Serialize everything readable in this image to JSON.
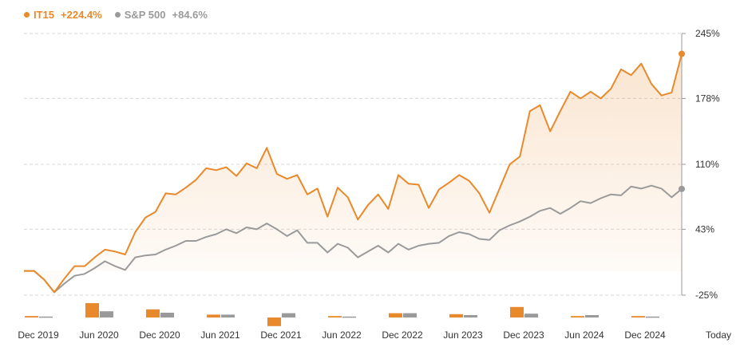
{
  "colors": {
    "it15": "#e8892b",
    "sp500": "#9a9a9a",
    "grid": "#d8d8d8",
    "text": "#333333"
  },
  "legend": {
    "it15": {
      "name": "IT15",
      "value": "+224.4%"
    },
    "sp500": {
      "name": "S&P 500",
      "value": "+84.6%"
    }
  },
  "chart_data": {
    "type": "line",
    "x_labels": [
      "Dec 2019",
      "Jun 2020",
      "Dec 2020",
      "Jun 2021",
      "Dec 2021",
      "Jun 2022",
      "Dec 2022",
      "Jun 2023",
      "Dec 2023",
      "Jun 2024",
      "Dec 2024",
      "Today"
    ],
    "y_ticks": [
      "245%",
      "178%",
      "110%",
      "43%",
      "-25%"
    ],
    "ylim": [
      -25,
      245
    ],
    "grid": "horizontal dashed",
    "legend_position": "top-left",
    "series": [
      {
        "name": "IT15",
        "color": "#e8892b",
        "values": [
          0,
          0,
          -9,
          -22,
          -8,
          5,
          5,
          14,
          22,
          20,
          17,
          40,
          55,
          61,
          80,
          79,
          86,
          94,
          106,
          104,
          107,
          98,
          111,
          106,
          127,
          100,
          95,
          99,
          79,
          85,
          56,
          86,
          76,
          53,
          68,
          79,
          64,
          99,
          90,
          89,
          65,
          84,
          91,
          99,
          93,
          80,
          60,
          85,
          110,
          118,
          165,
          171,
          144,
          165,
          185,
          178,
          185,
          178,
          188,
          208,
          202,
          214,
          193,
          181,
          184,
          224
        ]
      },
      {
        "name": "S&P 500",
        "color": "#9a9a9a",
        "values": [
          0,
          0,
          -9,
          -22,
          -13,
          -5,
          -3,
          3,
          10,
          5,
          1,
          14,
          16,
          17,
          22,
          26,
          31,
          31,
          35,
          38,
          43,
          39,
          45,
          43,
          49,
          43,
          36,
          42,
          29,
          29,
          19,
          28,
          24,
          14,
          20,
          26,
          19,
          28,
          22,
          26,
          28,
          29,
          36,
          40,
          38,
          33,
          32,
          42,
          47,
          51,
          56,
          62,
          65,
          59,
          65,
          72,
          70,
          75,
          79,
          78,
          87,
          85,
          88,
          85,
          76,
          84.6
        ]
      }
    ],
    "bars": {
      "x_labels_index": [
        0,
        1,
        2,
        3,
        4,
        5,
        6,
        7,
        8,
        9,
        10,
        11
      ],
      "it15": [
        1.5,
        15,
        8.5,
        3,
        -9,
        1.5,
        4.5,
        3.5,
        11,
        1.5,
        1.5,
        0
      ],
      "sp500": [
        1,
        6.5,
        5,
        3,
        4.5,
        1,
        4.5,
        2.5,
        4,
        2.5,
        1,
        0
      ]
    }
  }
}
